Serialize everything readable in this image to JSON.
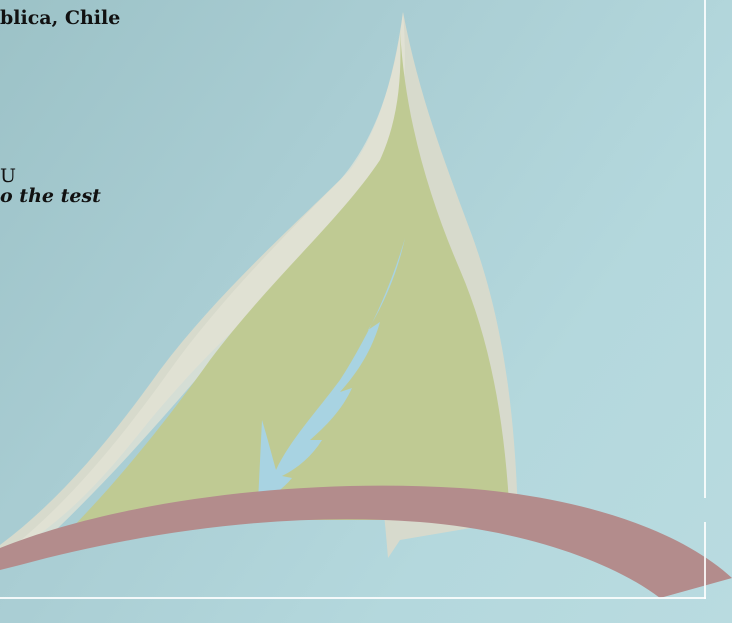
{
  "slide": {
    "text": {
      "line1": "blica, Chile",
      "line2": "U",
      "line3": "o the test"
    },
    "colors": {
      "background": "#a9cdd3",
      "sail_outer": "#d8d9c9",
      "sail_inner": "#bfca93",
      "feather": "#a8d3e2",
      "swoosh": "#b38c8c",
      "frame": "#ffffff"
    },
    "graphic": {
      "name": "sail-leaf-logo"
    }
  }
}
